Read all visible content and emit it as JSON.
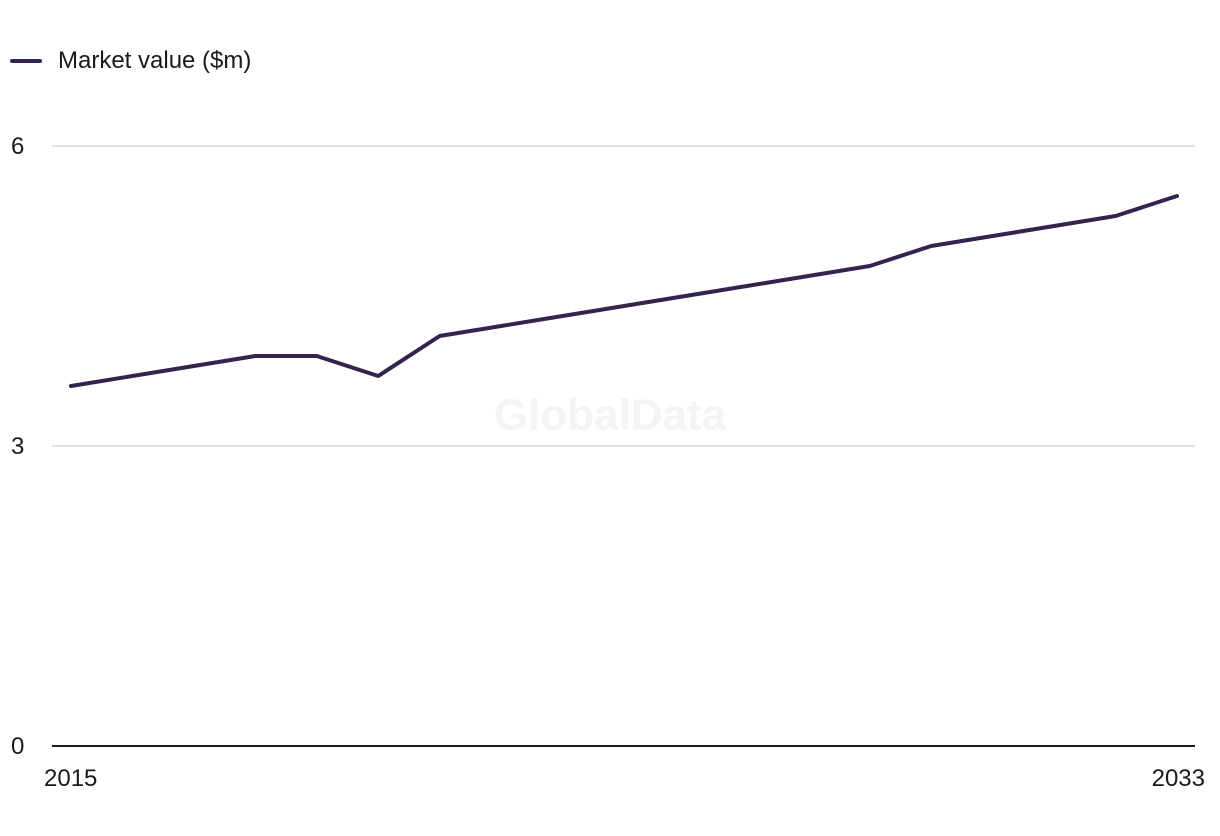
{
  "watermark": "GlobalData",
  "chart_data": {
    "type": "line",
    "title": "",
    "xlabel": "",
    "ylabel": "",
    "x": [
      2015,
      2016,
      2017,
      2018,
      2019,
      2020,
      2021,
      2022,
      2023,
      2024,
      2025,
      2026,
      2027,
      2028,
      2029,
      2030,
      2031,
      2032,
      2033
    ],
    "series": [
      {
        "name": "Market value ($m)",
        "color": "#35224f",
        "values": [
          3.6,
          3.7,
          3.8,
          3.9,
          3.9,
          3.7,
          4.1,
          4.2,
          4.3,
          4.4,
          4.5,
          4.6,
          4.7,
          4.8,
          5.0,
          5.1,
          5.2,
          5.3,
          5.5
        ]
      }
    ],
    "ylim": [
      0,
      6
    ],
    "y_ticks": [
      0,
      3,
      6
    ],
    "x_tick_labels": [
      "2015",
      "2033"
    ],
    "grid": true,
    "legend_position": "top-left",
    "gridline_color": "#d9d9d9",
    "axis_color": "#1a1a1a"
  }
}
